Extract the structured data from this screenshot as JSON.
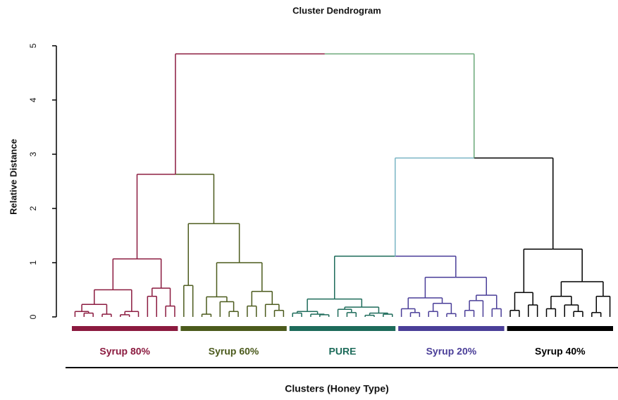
{
  "chart_data": {
    "type": "dendrogram",
    "title": "Cluster Dendrogram",
    "ylabel": "Relative Distance",
    "xlabel": "Clusters (Honey Type)",
    "ylim": [
      0,
      5
    ],
    "yticks": [
      0,
      1,
      2,
      3,
      4,
      5
    ],
    "clusters": [
      {
        "name": "Syrup 80%",
        "color": "#8b1a3f"
      },
      {
        "name": "Syrup 60%",
        "color": "#4b5a1c"
      },
      {
        "name": "PURE",
        "color": "#1d6b5a"
      },
      {
        "name": "Syrup 20%",
        "color": "#4a3e98"
      },
      {
        "name": "Syrup 40%",
        "color": "#000000"
      }
    ],
    "tree": {
      "height": 4.85,
      "children": [
        {
          "height": 2.63,
          "color": "#8b1a3f",
          "children": [
            {
              "height": 1.07,
              "color": "#8b1a3f",
              "children": [
                {
                  "height": 0.5,
                  "children": [
                    {
                      "height": 0.23,
                      "children": [
                        {
                          "height": 0.1,
                          "children": [
                            {
                              "height": 0
                            },
                            {
                              "height": 0.07,
                              "children": [
                                {
                                  "height": 0
                                },
                                {
                                  "height": 0
                                }
                              ]
                            }
                          ]
                        },
                        {
                          "height": 0.05,
                          "children": [
                            {
                              "height": 0
                            },
                            {
                              "height": 0
                            }
                          ]
                        }
                      ]
                    },
                    {
                      "height": 0.1,
                      "children": [
                        {
                          "height": 0.04,
                          "children": [
                            {
                              "height": 0
                            },
                            {
                              "height": 0
                            }
                          ]
                        },
                        {
                          "height": 0
                        }
                      ]
                    }
                  ]
                },
                {
                  "height": 0.53,
                  "children": [
                    {
                      "height": 0.38,
                      "children": [
                        {
                          "height": 0
                        },
                        {
                          "height": 0
                        }
                      ]
                    },
                    {
                      "height": 0.2,
                      "children": [
                        {
                          "height": 0
                        },
                        {
                          "height": 0
                        }
                      ]
                    }
                  ]
                }
              ]
            },
            {
              "height": 1.72,
              "color": "#4b5a1c",
              "children": [
                {
                  "height": 0.58,
                  "children": [
                    {
                      "height": 0
                    },
                    {
                      "height": 0
                    }
                  ]
                },
                {
                  "height": 1.0,
                  "children": [
                    {
                      "height": 0.37,
                      "children": [
                        {
                          "height": 0.05,
                          "children": [
                            {
                              "height": 0
                            },
                            {
                              "height": 0
                            }
                          ]
                        },
                        {
                          "height": 0.28,
                          "children": [
                            {
                              "height": 0
                            },
                            {
                              "height": 0.1,
                              "children": [
                                {
                                  "height": 0
                                },
                                {
                                  "height": 0
                                }
                              ]
                            }
                          ]
                        }
                      ]
                    },
                    {
                      "height": 0.47,
                      "children": [
                        {
                          "height": 0.2,
                          "children": [
                            {
                              "height": 0
                            },
                            {
                              "height": 0
                            }
                          ]
                        },
                        {
                          "height": 0.23,
                          "children": [
                            {
                              "height": 0
                            },
                            {
                              "height": 0.12,
                              "children": [
                                {
                                  "height": 0
                                },
                                {
                                  "height": 0
                                }
                              ]
                            }
                          ]
                        }
                      ]
                    }
                  ]
                }
              ]
            }
          ]
        },
        {
          "height": 2.93,
          "color": "#6aa878",
          "children": [
            {
              "height": 1.12,
              "color": "#7ab5c4",
              "children": [
                {
                  "height": 0.33,
                  "color": "#1d6b5a",
                  "children": [
                    {
                      "height": 0.1,
                      "children": [
                        {
                          "height": 0.07,
                          "children": [
                            {
                              "height": 0
                            },
                            {
                              "height": 0
                            }
                          ]
                        },
                        {
                          "height": 0.05,
                          "children": [
                            {
                              "height": 0
                            },
                            {
                              "height": 0.04,
                              "children": [
                                {
                                  "height": 0
                                },
                                {
                                  "height": 0
                                }
                              ]
                            }
                          ]
                        }
                      ]
                    },
                    {
                      "height": 0.18,
                      "children": [
                        {
                          "height": 0.14,
                          "children": [
                            {
                              "height": 0
                            },
                            {
                              "height": 0.08,
                              "children": [
                                {
                                  "height": 0
                                },
                                {
                                  "height": 0
                                }
                              ]
                            }
                          ]
                        },
                        {
                          "height": 0.07,
                          "children": [
                            {
                              "height": 0.03,
                              "children": [
                                {
                                  "height": 0
                                },
                                {
                                  "height": 0
                                }
                              ]
                            },
                            {
                              "height": 0.05,
                              "children": [
                                {
                                  "height": 0
                                },
                                {
                                  "height": 0
                                }
                              ]
                            }
                          ]
                        }
                      ]
                    }
                  ]
                },
                {
                  "height": 0.73,
                  "color": "#4a3e98",
                  "children": [
                    {
                      "height": 0.35,
                      "children": [
                        {
                          "height": 0.15,
                          "children": [
                            {
                              "height": 0
                            },
                            {
                              "height": 0.08,
                              "children": [
                                {
                                  "height": 0
                                },
                                {
                                  "height": 0
                                }
                              ]
                            }
                          ]
                        },
                        {
                          "height": 0.25,
                          "children": [
                            {
                              "height": 0.1,
                              "children": [
                                {
                                  "height": 0
                                },
                                {
                                  "height": 0
                                }
                              ]
                            },
                            {
                              "height": 0.06,
                              "children": [
                                {
                                  "height": 0
                                },
                                {
                                  "height": 0
                                }
                              ]
                            }
                          ]
                        }
                      ]
                    },
                    {
                      "height": 0.4,
                      "children": [
                        {
                          "height": 0.3,
                          "children": [
                            {
                              "height": 0.12,
                              "children": [
                                {
                                  "height": 0
                                },
                                {
                                  "height": 0
                                }
                              ]
                            },
                            {
                              "height": 0
                            }
                          ]
                        },
                        {
                          "height": 0.15,
                          "children": [
                            {
                              "height": 0
                            },
                            {
                              "height": 0
                            }
                          ]
                        }
                      ]
                    }
                  ]
                }
              ]
            },
            {
              "height": 1.25,
              "color": "#000000",
              "children": [
                {
                  "height": 0.45,
                  "children": [
                    {
                      "height": 0.12,
                      "children": [
                        {
                          "height": 0
                        },
                        {
                          "height": 0
                        }
                      ]
                    },
                    {
                      "height": 0.22,
                      "children": [
                        {
                          "height": 0
                        },
                        {
                          "height": 0
                        }
                      ]
                    }
                  ]
                },
                {
                  "height": 0.65,
                  "children": [
                    {
                      "height": 0.38,
                      "children": [
                        {
                          "height": 0.15,
                          "children": [
                            {
                              "height": 0
                            },
                            {
                              "height": 0
                            }
                          ]
                        },
                        {
                          "height": 0.22,
                          "children": [
                            {
                              "height": 0
                            },
                            {
                              "height": 0.1,
                              "children": [
                                {
                                  "height": 0
                                },
                                {
                                  "height": 0
                                }
                              ]
                            }
                          ]
                        }
                      ]
                    },
                    {
                      "height": 0.38,
                      "children": [
                        {
                          "height": 0.08,
                          "children": [
                            {
                              "height": 0
                            },
                            {
                              "height": 0
                            }
                          ]
                        },
                        {
                          "height": 0
                        }
                      ]
                    }
                  ]
                }
              ]
            }
          ]
        }
      ]
    }
  }
}
